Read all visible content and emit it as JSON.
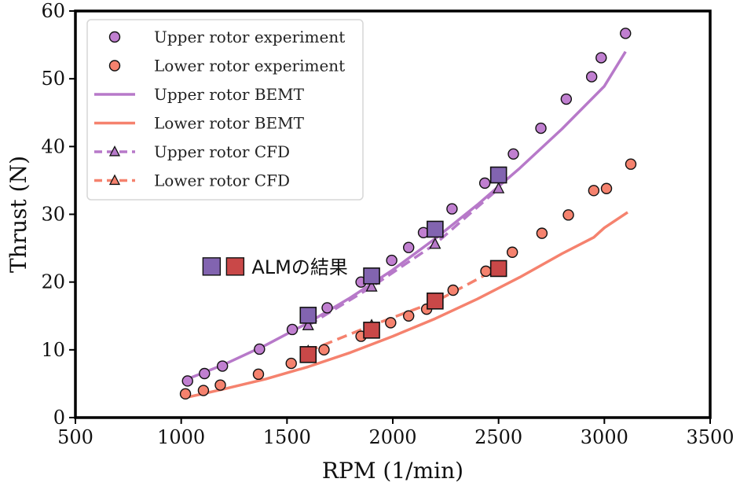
{
  "chart_data": {
    "type": "line",
    "xlabel": "RPM (1/min)",
    "ylabel": "Thrust (N)",
    "xlim": [
      500,
      3500
    ],
    "ylim": [
      0,
      60
    ],
    "xticks": [
      500,
      1000,
      1500,
      2000,
      2500,
      3000,
      3500
    ],
    "yticks": [
      0,
      10,
      20,
      30,
      40,
      50,
      60
    ],
    "grid": false,
    "legend_position": "top-left",
    "series": [
      {
        "name": "Upper rotor experiment",
        "kind": "scatter",
        "marker": "circle",
        "color": "#c07fd0",
        "x": [
          1030,
          1110,
          1195,
          1370,
          1525,
          1690,
          1850,
          1995,
          2075,
          2145,
          2280,
          2435,
          2570,
          2700,
          2820,
          2940,
          2985,
          3100
        ],
        "y": [
          5.4,
          6.5,
          7.6,
          10.1,
          13.0,
          16.2,
          20.0,
          23.2,
          25.1,
          27.3,
          30.8,
          34.6,
          38.9,
          42.7,
          47.0,
          50.3,
          53.1,
          56.7
        ]
      },
      {
        "name": "Lower rotor experiment",
        "kind": "scatter",
        "marker": "circle",
        "color": "#f5826e",
        "x": [
          1020,
          1105,
          1185,
          1365,
          1520,
          1675,
          1850,
          1990,
          2075,
          2160,
          2285,
          2440,
          2565,
          2705,
          2830,
          2950,
          3010,
          3125
        ],
        "y": [
          3.5,
          4.0,
          4.8,
          6.4,
          8.0,
          10.0,
          12.0,
          14.0,
          15.0,
          16.0,
          18.8,
          21.6,
          24.4,
          27.2,
          29.9,
          33.5,
          33.8,
          37.4
        ]
      },
      {
        "name": "Upper rotor BEMT",
        "kind": "line",
        "dash": "solid",
        "color": "#b779c9",
        "x": [
          1030,
          1200,
          1400,
          1600,
          1800,
          2000,
          2200,
          2400,
          2600,
          2800,
          3000,
          3100
        ],
        "y": [
          5.7,
          7.8,
          10.7,
          14.0,
          17.7,
          21.8,
          26.4,
          31.4,
          36.8,
          42.6,
          48.9,
          54.0
        ]
      },
      {
        "name": "Lower rotor BEMT",
        "kind": "line",
        "dash": "solid",
        "color": "#f5826e",
        "x": [
          1030,
          1200,
          1400,
          1600,
          1800,
          2000,
          2200,
          2400,
          2600,
          2800,
          2950,
          3000,
          3110
        ],
        "y": [
          3.0,
          4.2,
          5.7,
          7.5,
          9.6,
          12.0,
          14.6,
          17.5,
          20.7,
          24.2,
          26.6,
          28.0,
          30.3
        ]
      },
      {
        "name": "Upper rotor CFD",
        "kind": "line",
        "dash": "dashed",
        "marker": "triangle",
        "color": "#b779c9",
        "x": [
          1600,
          1900,
          2200,
          2500
        ],
        "y": [
          13.6,
          19.3,
          25.6,
          33.8
        ]
      },
      {
        "name": "Lower rotor CFD",
        "kind": "line",
        "dash": "dashed",
        "marker": "triangle",
        "color": "#f5826e",
        "x": [
          1600,
          1900,
          2200,
          2500
        ],
        "y": [
          9.8,
          13.6,
          17.1,
          22.1
        ]
      },
      {
        "kind": "scatter",
        "marker": "square",
        "color": "#8264b0",
        "x": [
          1600,
          1900,
          2200,
          2500
        ],
        "y": [
          15.1,
          20.9,
          27.8,
          35.8
        ]
      },
      {
        "kind": "scatter",
        "marker": "square",
        "color": "#c94848",
        "x": [
          1600,
          1900,
          2200,
          2500
        ],
        "y": [
          9.3,
          12.9,
          17.2,
          22.0
        ]
      }
    ],
    "annotations": [
      {
        "text": "ALMの結果",
        "x": 1140,
        "y": 22.3,
        "swatch_colors": [
          "#8264b0",
          "#c94848"
        ]
      }
    ]
  }
}
